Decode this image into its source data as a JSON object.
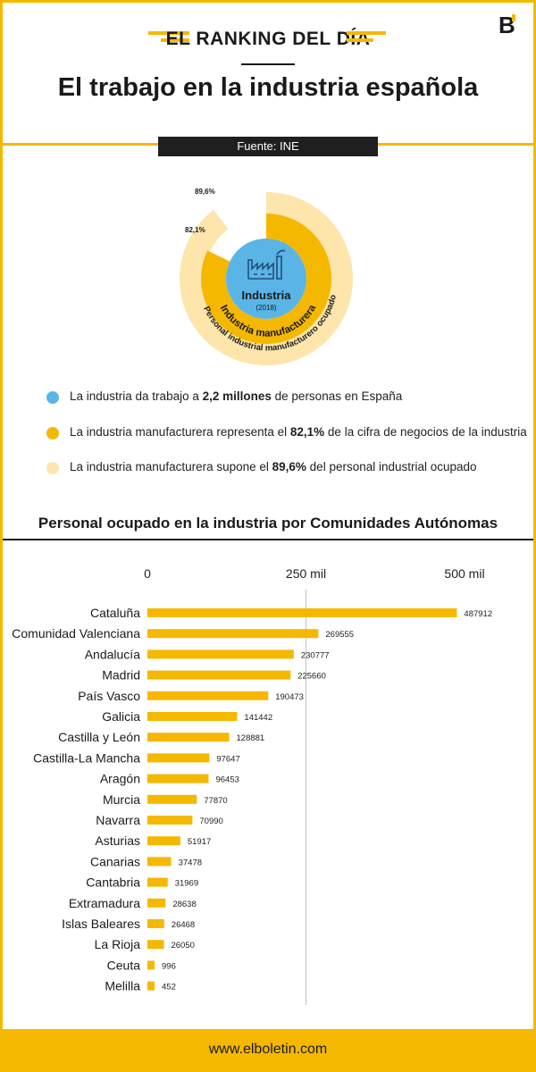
{
  "header": {
    "kicker": "EL RANKING DEL DÍA",
    "title": "El trabajo en la industria española",
    "logo_text": "B"
  },
  "source_label": "Fuente: INE",
  "donut": {
    "center_label": "Industria",
    "center_year": "(2018)",
    "inner_ring_label": "Industria manufacturera",
    "outer_ring_label": "Personal industrial manufacturero ocupado",
    "inner_pct_label": "82,1%",
    "outer_pct_label": "89,6%",
    "inner_fraction": 0.821,
    "outer_fraction": 0.896,
    "colors": {
      "center": "#5ab5e6",
      "inner": "#f5b800",
      "outer": "#fde5ac"
    }
  },
  "legend": [
    {
      "color": "#5ab5e6",
      "pre": "La industria da trabajo a ",
      "bold": "2,2 millones",
      "post": " de personas en España"
    },
    {
      "color": "#f5b800",
      "pre": "La industria manufacturera representa el ",
      "bold": "82,1%",
      "post": " de la cifra de negocios de la industria"
    },
    {
      "color": "#fde5ac",
      "pre": "La industria manufacturera supone el ",
      "bold": "89,6%",
      "post": " del personal industrial ocupado"
    }
  ],
  "chart_data": {
    "type": "bar",
    "orientation": "horizontal",
    "title": "Personal ocupado en la industria por Comunidades Autónomas",
    "tick_labels": [
      "0",
      "250 mil",
      "500 mil"
    ],
    "ticks": [
      0,
      250000,
      500000
    ],
    "xlim": [
      0,
      500000
    ],
    "bar_color": "#f5b800",
    "categories": [
      "Cataluña",
      "Comunidad Valenciana",
      "Andalucía",
      "Madrid",
      "País Vasco",
      "Galicia",
      "Castilla y León",
      "Castilla-La Mancha",
      "Aragón",
      "Murcia",
      "Navarra",
      "Asturias",
      "Canarias",
      "Cantabria",
      "Extramadura",
      "Islas Baleares",
      "La Rioja",
      "Ceuta",
      "Melilla"
    ],
    "values": [
      487912,
      269555,
      230777,
      225660,
      190473,
      141442,
      128881,
      97647,
      96453,
      77870,
      70990,
      51917,
      37478,
      31969,
      28638,
      26468,
      26050,
      996,
      452
    ]
  },
  "footer": {
    "url": "www.elboletin.com"
  }
}
